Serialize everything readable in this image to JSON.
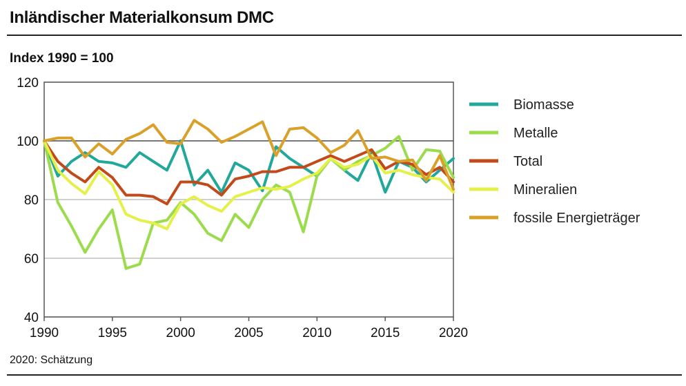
{
  "title": "Inländischer Materialkonsum DMC",
  "subtitle": "Index 1990 = 100",
  "note": "2020: Schätzung",
  "chart_data": {
    "type": "line",
    "ylim": [
      40,
      120
    ],
    "yticks": [
      40,
      60,
      80,
      100,
      120
    ],
    "xlim": [
      1990,
      2020
    ],
    "xticks": [
      1990,
      1995,
      2000,
      2005,
      2010,
      2015,
      2020
    ],
    "reference_line": 100,
    "grid": true,
    "legend_position": "right",
    "x": [
      1990,
      1991,
      1992,
      1993,
      1994,
      1995,
      1996,
      1997,
      1998,
      1999,
      2000,
      2001,
      2002,
      2003,
      2004,
      2005,
      2006,
      2007,
      2008,
      2009,
      2010,
      2011,
      2012,
      2013,
      2014,
      2015,
      2016,
      2017,
      2018,
      2019,
      2020
    ],
    "series": [
      {
        "name": "Biomasse",
        "color": "#22a89a",
        "values": [
          100,
          88,
          93,
          96,
          93,
          92.5,
          91,
          96,
          93,
          90,
          100,
          85,
          90,
          82.5,
          92.5,
          90,
          83,
          98,
          94,
          91,
          88,
          94,
          90,
          86.5,
          96,
          82.5,
          93,
          91,
          86,
          90,
          94
        ]
      },
      {
        "name": "Metalle",
        "color": "#9bdc4c",
        "values": [
          100,
          79,
          71,
          62,
          70,
          76.5,
          56.5,
          58,
          72,
          73,
          79,
          75,
          68.5,
          66,
          75,
          70.5,
          80,
          85,
          82.5,
          69,
          88,
          94,
          90,
          93,
          95,
          97.5,
          101.5,
          90,
          97,
          96.5,
          87.5
        ]
      },
      {
        "name": "Total",
        "color": "#c24a1a",
        "values": [
          100,
          93,
          89,
          86,
          91,
          87.5,
          81.5,
          81.5,
          81,
          78.5,
          86,
          86,
          85,
          81.5,
          87,
          88,
          89.5,
          89.5,
          91,
          91,
          93,
          95,
          93,
          95,
          97,
          90.5,
          93,
          92,
          88.5,
          91,
          86
        ]
      },
      {
        "name": "Mineralien",
        "color": "#e6f04a",
        "values": [
          100,
          90,
          85.5,
          82,
          89.5,
          85,
          75,
          73,
          72,
          70,
          78.5,
          81,
          78,
          76,
          81,
          82.5,
          84,
          83.5,
          84.5,
          87,
          89,
          94,
          91,
          92,
          95,
          89,
          90,
          88.5,
          87.5,
          87,
          82.5
        ]
      },
      {
        "name": "fossile Energieträger",
        "color": "#d9a02a",
        "values": [
          100,
          101,
          101,
          94.5,
          99,
          95.5,
          100.5,
          102.5,
          105.5,
          99.5,
          99,
          107,
          104,
          99.5,
          101.5,
          104,
          106.5,
          95,
          104,
          104.5,
          101,
          96,
          98.5,
          103.5,
          94,
          94.5,
          93,
          93.5,
          86.5,
          95,
          83.5
        ]
      }
    ]
  }
}
